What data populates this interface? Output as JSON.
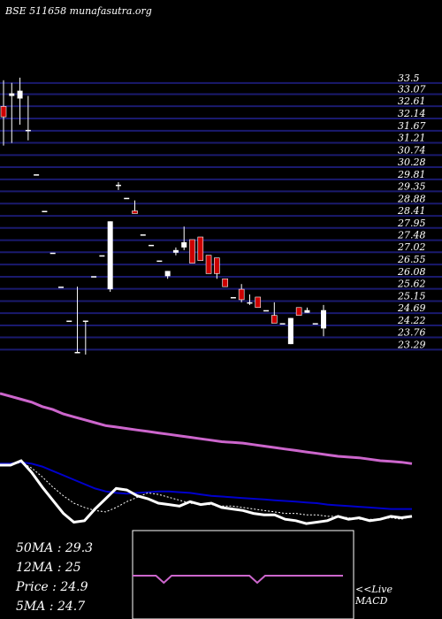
{
  "header": {
    "symbol_text": "BSE 511658",
    "site": "munafasutra.org"
  },
  "colors": {
    "background": "#000000",
    "grid": "#1a1a6e",
    "up_candle": "#ffffff",
    "down_candle": "#cc0000",
    "long_ma": "#cc66cc",
    "medium_ma": "#0000cc",
    "short_ma": "#ffffff"
  },
  "chart_data": [
    {
      "type": "candlestick",
      "title": "BSE 511658",
      "y_ticks": [
        33.5,
        33.07,
        32.61,
        32.14,
        31.67,
        31.21,
        30.74,
        30.28,
        29.81,
        29.35,
        28.88,
        28.41,
        27.95,
        27.48,
        27.02,
        26.55,
        26.08,
        25.62,
        25.15,
        24.69,
        24.22,
        23.76,
        23.29
      ],
      "y_tick_labels": [
        "33.5",
        "33.07",
        "32.61",
        "32.14",
        "31.67",
        "31.21",
        "30.74",
        "30.28",
        "29.81",
        "29.35",
        "28.88",
        "28.41",
        "27.95",
        "27.48",
        "27.02",
        "26.55",
        "26.08",
        "25.62",
        "25.15",
        "24.69",
        "24.22",
        "23.76",
        "23.29"
      ],
      "ylim": [
        23.0,
        33.9
      ],
      "candles": [
        {
          "o": 32.4,
          "h": 33.4,
          "l": 30.9,
          "c": 32.0
        },
        {
          "o": 32.8,
          "h": 33.3,
          "l": 31.0,
          "c": 32.9
        },
        {
          "o": 32.7,
          "h": 33.5,
          "l": 31.7,
          "c": 33.0
        },
        {
          "o": 31.5,
          "h": 32.8,
          "l": 31.1,
          "c": 31.5
        },
        {
          "o": 29.8,
          "h": 29.8,
          "l": 29.8,
          "c": 29.8
        },
        {
          "o": 28.4,
          "h": 28.4,
          "l": 28.4,
          "c": 28.4
        },
        {
          "o": 26.8,
          "h": 26.8,
          "l": 26.8,
          "c": 26.8
        },
        {
          "o": 25.5,
          "h": 25.5,
          "l": 25.5,
          "c": 25.5
        },
        {
          "o": 24.2,
          "h": 24.2,
          "l": 24.2,
          "c": 24.2
        },
        {
          "o": 23.0,
          "h": 25.5,
          "l": 23.0,
          "c": 23.0
        },
        {
          "o": 24.2,
          "h": 24.2,
          "l": 22.9,
          "c": 24.2
        },
        {
          "o": 25.9,
          "h": 25.9,
          "l": 25.9,
          "c": 25.9
        },
        {
          "o": 26.7,
          "h": 26.7,
          "l": 26.7,
          "c": 26.7
        },
        {
          "o": 25.4,
          "h": 28.0,
          "l": 25.3,
          "c": 28.0
        },
        {
          "o": 29.4,
          "h": 29.5,
          "l": 29.2,
          "c": 29.4
        },
        {
          "o": 28.9,
          "h": 28.9,
          "l": 28.9,
          "c": 28.9
        },
        {
          "o": 28.4,
          "h": 28.8,
          "l": 28.3,
          "c": 28.3
        },
        {
          "o": 27.5,
          "h": 27.5,
          "l": 27.5,
          "c": 27.5
        },
        {
          "o": 27.1,
          "h": 27.1,
          "l": 27.1,
          "c": 27.1
        },
        {
          "o": 26.5,
          "h": 26.5,
          "l": 26.5,
          "c": 26.5
        },
        {
          "o": 25.9,
          "h": 26.1,
          "l": 25.8,
          "c": 26.1
        },
        {
          "o": 26.8,
          "h": 27.0,
          "l": 26.7,
          "c": 26.9
        },
        {
          "o": 27.0,
          "h": 27.8,
          "l": 26.9,
          "c": 27.2
        },
        {
          "o": 27.3,
          "h": 27.3,
          "l": 26.4,
          "c": 26.4
        },
        {
          "o": 27.4,
          "h": 27.4,
          "l": 26.5,
          "c": 26.5
        },
        {
          "o": 26.7,
          "h": 26.7,
          "l": 26.0,
          "c": 26.0
        },
        {
          "o": 26.6,
          "h": 26.6,
          "l": 25.8,
          "c": 26.0
        },
        {
          "o": 25.8,
          "h": 25.8,
          "l": 25.5,
          "c": 25.5
        },
        {
          "o": 25.1,
          "h": 25.1,
          "l": 25.1,
          "c": 25.1
        },
        {
          "o": 25.4,
          "h": 25.6,
          "l": 24.9,
          "c": 25.0
        },
        {
          "o": 24.9,
          "h": 25.2,
          "l": 24.8,
          "c": 24.9
        },
        {
          "o": 25.1,
          "h": 25.1,
          "l": 24.7,
          "c": 24.7
        },
        {
          "o": 24.6,
          "h": 24.6,
          "l": 24.6,
          "c": 24.6
        },
        {
          "o": 24.4,
          "h": 24.9,
          "l": 24.1,
          "c": 24.1
        },
        {
          "o": 24.1,
          "h": 24.1,
          "l": 24.1,
          "c": 24.1
        },
        {
          "o": 23.3,
          "h": 24.3,
          "l": 23.3,
          "c": 24.3
        },
        {
          "o": 24.7,
          "h": 24.7,
          "l": 24.4,
          "c": 24.4
        },
        {
          "o": 24.5,
          "h": 24.7,
          "l": 24.5,
          "c": 24.6
        },
        {
          "o": 24.1,
          "h": 24.1,
          "l": 24.1,
          "c": 24.1
        },
        {
          "o": 23.9,
          "h": 24.8,
          "l": 23.6,
          "c": 24.6
        }
      ]
    },
    {
      "type": "line",
      "series": [
        {
          "key": "long",
          "values": [
            29.6,
            29.4,
            29.2,
            29.0,
            28.7,
            28.5,
            28.2,
            28.0,
            27.8,
            27.6,
            27.4,
            27.3,
            27.2,
            27.1,
            27.0,
            26.9,
            26.8,
            26.7,
            26.6,
            26.5,
            26.4,
            26.3,
            26.25,
            26.2,
            26.1,
            26.0,
            25.9,
            25.8,
            25.7,
            25.6,
            25.5,
            25.4,
            25.3,
            25.25,
            25.2,
            25.1,
            25.0,
            24.95,
            24.9,
            24.8
          ]
        },
        {
          "key": "medium",
          "values": [
            24.8,
            24.8,
            24.9,
            24.8,
            24.6,
            24.3,
            24.0,
            23.7,
            23.4,
            23.1,
            22.9,
            22.8,
            22.75,
            22.8,
            22.85,
            22.9,
            22.9,
            22.85,
            22.8,
            22.7,
            22.6,
            22.55,
            22.5,
            22.45,
            22.4,
            22.35,
            22.3,
            22.25,
            22.2,
            22.15,
            22.1,
            22.0,
            21.95,
            21.9,
            21.85,
            21.8,
            21.75,
            21.7,
            21.7,
            21.7
          ]
        },
        {
          "key": "short",
          "values": [
            24.7,
            24.7,
            24.9,
            24.5,
            23.9,
            23.2,
            22.6,
            22.1,
            21.8,
            21.6,
            21.5,
            21.8,
            22.2,
            22.5,
            22.8,
            22.7,
            22.5,
            22.3,
            22.1,
            22.0,
            22.0,
            21.9,
            21.9,
            21.8,
            21.7,
            21.6,
            21.5,
            21.4,
            21.4,
            21.3,
            21.3,
            21.2,
            21.2,
            21.1,
            21.0,
            21.0,
            21.0,
            21.1,
            21.0,
            21.2
          ]
        },
        {
          "key": "price",
          "values": [
            24.7,
            24.7,
            25.0,
            24.2,
            23.2,
            22.3,
            21.4,
            20.8,
            20.9,
            21.7,
            22.4,
            23.1,
            23.0,
            22.6,
            22.4,
            22.1,
            22.0,
            21.9,
            22.2,
            22.0,
            22.1,
            21.8,
            21.7,
            21.6,
            21.4,
            21.3,
            21.3,
            21.0,
            20.9,
            20.7,
            20.8,
            20.9,
            21.2,
            21.0,
            21.1,
            20.9,
            21.0,
            21.2,
            21.1,
            21.2
          ]
        }
      ],
      "ylim": [
        19.5,
        30.5
      ]
    },
    {
      "type": "line",
      "title": "",
      "label": "MACD",
      "values": [
        0,
        0,
        0,
        0,
        -1,
        0,
        0,
        0,
        0,
        0,
        0,
        0,
        0,
        0,
        0,
        0,
        -1,
        0,
        0,
        0,
        0,
        0,
        0,
        0,
        0,
        0,
        0,
        0
      ],
      "ylim": [
        -3,
        3
      ]
    }
  ],
  "stats": [
    {
      "label": "50MA",
      "sep": " : ",
      "value": "29.3"
    },
    {
      "label": "12MA",
      "sep": " : ",
      "value": "25"
    },
    {
      "label": "Price",
      "sep": "  : ",
      "value": "24.9"
    },
    {
      "label": "5MA",
      "sep": " : ",
      "value": "24.7"
    }
  ],
  "live_link": "<<Live",
  "macd_label": "MACD"
}
